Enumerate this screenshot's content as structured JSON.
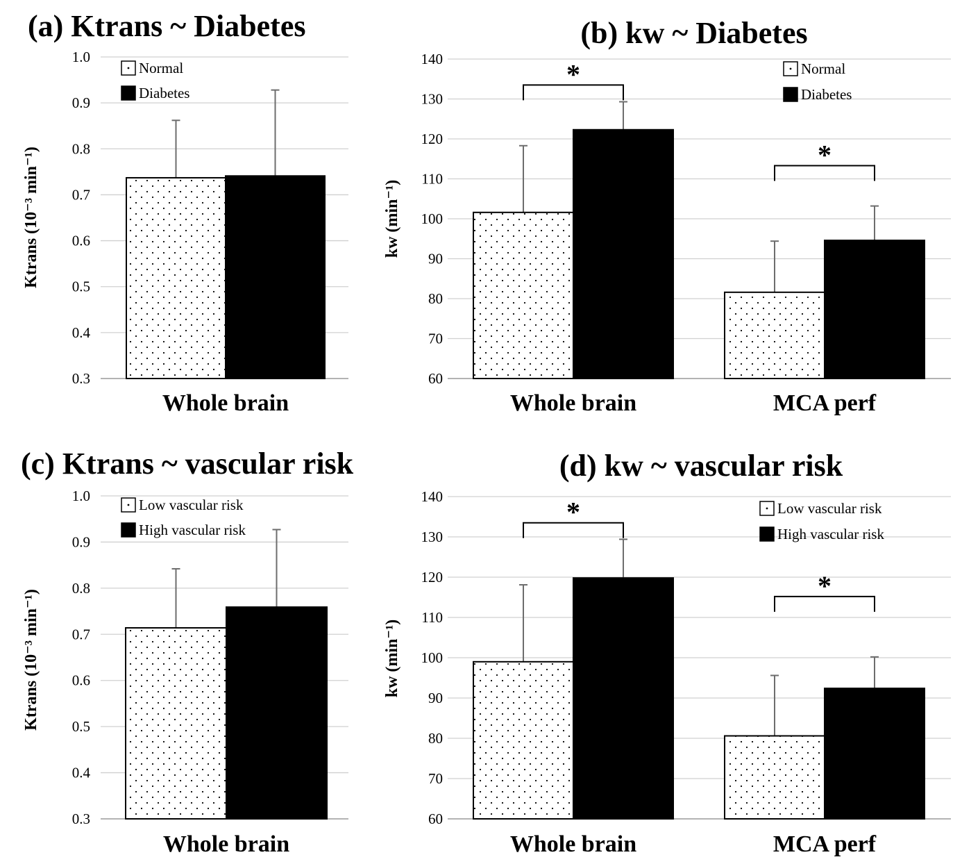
{
  "chart_data": [
    {
      "id": "a",
      "type": "bar",
      "title": "(a) Ktrans ~ Diabetes",
      "ylabel": "Ktrans (10⁻³ min⁻¹)",
      "ylim": [
        0.3,
        1.0
      ],
      "yticks": [
        0.3,
        0.4,
        0.5,
        0.6,
        0.7,
        0.8,
        0.9,
        1.0
      ],
      "ytick_decimals": 1,
      "grid": true,
      "categories": [
        "Whole brain"
      ],
      "series": [
        {
          "name": "Normal",
          "pattern": "dots",
          "values": [
            0.737
          ],
          "errors": [
            0.125
          ]
        },
        {
          "name": "Diabetes",
          "pattern": "solid",
          "values": [
            0.741
          ],
          "errors": [
            0.187
          ]
        }
      ],
      "significance": [],
      "legend_position": "top-left"
    },
    {
      "id": "b",
      "type": "bar",
      "title": "(b) kw ~ Diabetes",
      "ylabel": "kw (min⁻¹)",
      "ylim": [
        60,
        140
      ],
      "yticks": [
        60,
        70,
        80,
        90,
        100,
        110,
        120,
        130,
        140
      ],
      "ytick_decimals": 0,
      "grid": true,
      "categories": [
        "Whole brain",
        "MCA perf"
      ],
      "series": [
        {
          "name": "Normal",
          "pattern": "dots",
          "values": [
            101.6,
            81.6
          ],
          "errors": [
            16.7,
            12.8
          ]
        },
        {
          "name": "Diabetes",
          "pattern": "solid",
          "values": [
            122.3,
            94.6
          ],
          "errors": [
            7.0,
            8.6
          ]
        }
      ],
      "significance": [
        {
          "category": 0,
          "label": "*",
          "level": 133.5
        },
        {
          "category": 1,
          "label": "*",
          "level": 113.3
        }
      ],
      "legend_position": "top-right"
    },
    {
      "id": "c",
      "type": "bar",
      "title": "(c) Ktrans ~ vascular risk",
      "ylabel": "Ktrans (10⁻³ min⁻¹)",
      "ylim": [
        0.3,
        1.0
      ],
      "yticks": [
        0.3,
        0.4,
        0.5,
        0.6,
        0.7,
        0.8,
        0.9,
        1.0
      ],
      "ytick_decimals": 1,
      "grid": true,
      "categories": [
        "Whole brain"
      ],
      "series": [
        {
          "name": "Low vascular risk",
          "pattern": "dots",
          "values": [
            0.714
          ],
          "errors": [
            0.128
          ]
        },
        {
          "name": "High vascular risk",
          "pattern": "solid",
          "values": [
            0.759
          ],
          "errors": [
            0.168
          ]
        }
      ],
      "significance": [],
      "legend_position": "top-left"
    },
    {
      "id": "d",
      "type": "bar",
      "title": "(d) kw ~ vascular risk",
      "ylabel": "kw (min⁻¹)",
      "ylim": [
        60,
        140
      ],
      "yticks": [
        60,
        70,
        80,
        90,
        100,
        110,
        120,
        130,
        140
      ],
      "ytick_decimals": 0,
      "grid": true,
      "categories": [
        "Whole brain",
        "MCA perf"
      ],
      "series": [
        {
          "name": "Low vascular risk",
          "pattern": "dots",
          "values": [
            99.0,
            80.6
          ],
          "errors": [
            19.1,
            15.0
          ]
        },
        {
          "name": "High vascular risk",
          "pattern": "solid",
          "values": [
            119.8,
            92.4
          ],
          "errors": [
            9.6,
            7.8
          ]
        }
      ],
      "significance": [
        {
          "category": 0,
          "label": "*",
          "level": 133.5
        },
        {
          "category": 1,
          "label": "*",
          "level": 115.2
        }
      ],
      "legend_position": "top-right"
    }
  ]
}
